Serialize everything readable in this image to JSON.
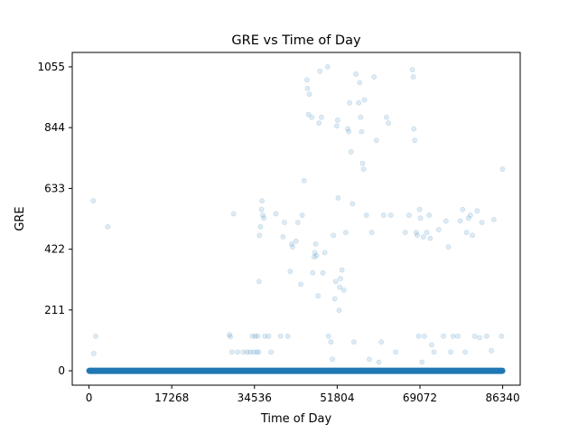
{
  "chart_data": {
    "type": "scatter",
    "title": "GRE vs Time of Day",
    "xlabel": "Time of Day",
    "ylabel": "GRE",
    "xlim": [
      -3500,
      90000
    ],
    "ylim": [
      -50,
      1105
    ],
    "xticks": [
      0,
      17268,
      34536,
      51804,
      69072,
      86340
    ],
    "yticks": [
      0,
      211,
      422,
      633,
      844,
      1055
    ],
    "grid": false,
    "marker_color": "#1f77b4",
    "marker_alpha": 0.15,
    "baseline": {
      "y": 0,
      "x_range": [
        0,
        86340
      ],
      "note": "dense band of points at GRE = 0 across the full day"
    },
    "series": [
      {
        "points": [
          [
            900,
            590
          ],
          [
            1000,
            60
          ],
          [
            1400,
            120
          ],
          [
            3900,
            500
          ],
          [
            29300,
            125
          ],
          [
            29500,
            118
          ],
          [
            29800,
            65
          ],
          [
            30200,
            545
          ],
          [
            31000,
            65
          ],
          [
            32200,
            65
          ],
          [
            33000,
            65
          ],
          [
            33600,
            65
          ],
          [
            34100,
            120
          ],
          [
            34300,
            65
          ],
          [
            34700,
            120
          ],
          [
            35000,
            65
          ],
          [
            35200,
            120
          ],
          [
            35400,
            65
          ],
          [
            35500,
            310
          ],
          [
            35600,
            470
          ],
          [
            35800,
            500
          ],
          [
            36000,
            560
          ],
          [
            36100,
            590
          ],
          [
            36300,
            540
          ],
          [
            36500,
            530
          ],
          [
            36700,
            120
          ],
          [
            37500,
            120
          ],
          [
            38000,
            65
          ],
          [
            39000,
            545
          ],
          [
            40000,
            120
          ],
          [
            40500,
            465
          ],
          [
            40800,
            515
          ],
          [
            41500,
            120
          ],
          [
            42000,
            345
          ],
          [
            42300,
            440
          ],
          [
            42500,
            430
          ],
          [
            43200,
            450
          ],
          [
            43600,
            515
          ],
          [
            44200,
            300
          ],
          [
            44500,
            540
          ],
          [
            44900,
            660
          ],
          [
            45500,
            1010
          ],
          [
            45600,
            980
          ],
          [
            45800,
            890
          ],
          [
            46000,
            960
          ],
          [
            46500,
            880
          ],
          [
            46700,
            340
          ],
          [
            47000,
            395
          ],
          [
            47100,
            410
          ],
          [
            47300,
            440
          ],
          [
            47500,
            400
          ],
          [
            47800,
            260
          ],
          [
            48000,
            860
          ],
          [
            48200,
            1040
          ],
          [
            48500,
            880
          ],
          [
            48800,
            340
          ],
          [
            49200,
            410
          ],
          [
            49800,
            1055
          ],
          [
            50000,
            120
          ],
          [
            50500,
            100
          ],
          [
            50800,
            40
          ],
          [
            51000,
            470
          ],
          [
            51300,
            250
          ],
          [
            51500,
            310
          ],
          [
            51700,
            850
          ],
          [
            51900,
            870
          ],
          [
            52000,
            600
          ],
          [
            52200,
            210
          ],
          [
            52300,
            290
          ],
          [
            52500,
            320
          ],
          [
            52800,
            350
          ],
          [
            53200,
            280
          ],
          [
            53600,
            480
          ],
          [
            54000,
            840
          ],
          [
            54200,
            830
          ],
          [
            54400,
            930
          ],
          [
            54700,
            760
          ],
          [
            55000,
            580
          ],
          [
            55300,
            100
          ],
          [
            55700,
            1030
          ],
          [
            56300,
            930
          ],
          [
            56500,
            1000
          ],
          [
            56700,
            880
          ],
          [
            56900,
            830
          ],
          [
            57100,
            720
          ],
          [
            57300,
            700
          ],
          [
            57500,
            940
          ],
          [
            57900,
            540
          ],
          [
            58500,
            40
          ],
          [
            59000,
            480
          ],
          [
            59500,
            1020
          ],
          [
            60000,
            800
          ],
          [
            60500,
            30
          ],
          [
            61000,
            100
          ],
          [
            61500,
            540
          ],
          [
            62100,
            880
          ],
          [
            62500,
            860
          ],
          [
            63000,
            540
          ],
          [
            64000,
            65
          ],
          [
            66000,
            480
          ],
          [
            66800,
            540
          ],
          [
            67500,
            1045
          ],
          [
            67700,
            1020
          ],
          [
            67800,
            840
          ],
          [
            68000,
            800
          ],
          [
            68300,
            480
          ],
          [
            68500,
            470
          ],
          [
            68800,
            120
          ],
          [
            69000,
            560
          ],
          [
            69200,
            530
          ],
          [
            69500,
            30
          ],
          [
            69800,
            465
          ],
          [
            70000,
            120
          ],
          [
            70500,
            480
          ],
          [
            71000,
            540
          ],
          [
            71200,
            460
          ],
          [
            71500,
            90
          ],
          [
            72000,
            65
          ],
          [
            73000,
            490
          ],
          [
            74000,
            120
          ],
          [
            74500,
            520
          ],
          [
            75000,
            430
          ],
          [
            75500,
            65
          ],
          [
            76000,
            120
          ],
          [
            77000,
            120
          ],
          [
            77500,
            520
          ],
          [
            78000,
            560
          ],
          [
            78500,
            65
          ],
          [
            78800,
            480
          ],
          [
            79200,
            530
          ],
          [
            79600,
            540
          ],
          [
            80000,
            470
          ],
          [
            80500,
            120
          ],
          [
            81000,
            555
          ],
          [
            81500,
            115
          ],
          [
            82000,
            515
          ],
          [
            83000,
            120
          ],
          [
            84000,
            70
          ],
          [
            84500,
            525
          ],
          [
            86100,
            120
          ],
          [
            86300,
            700
          ]
        ]
      }
    ]
  }
}
